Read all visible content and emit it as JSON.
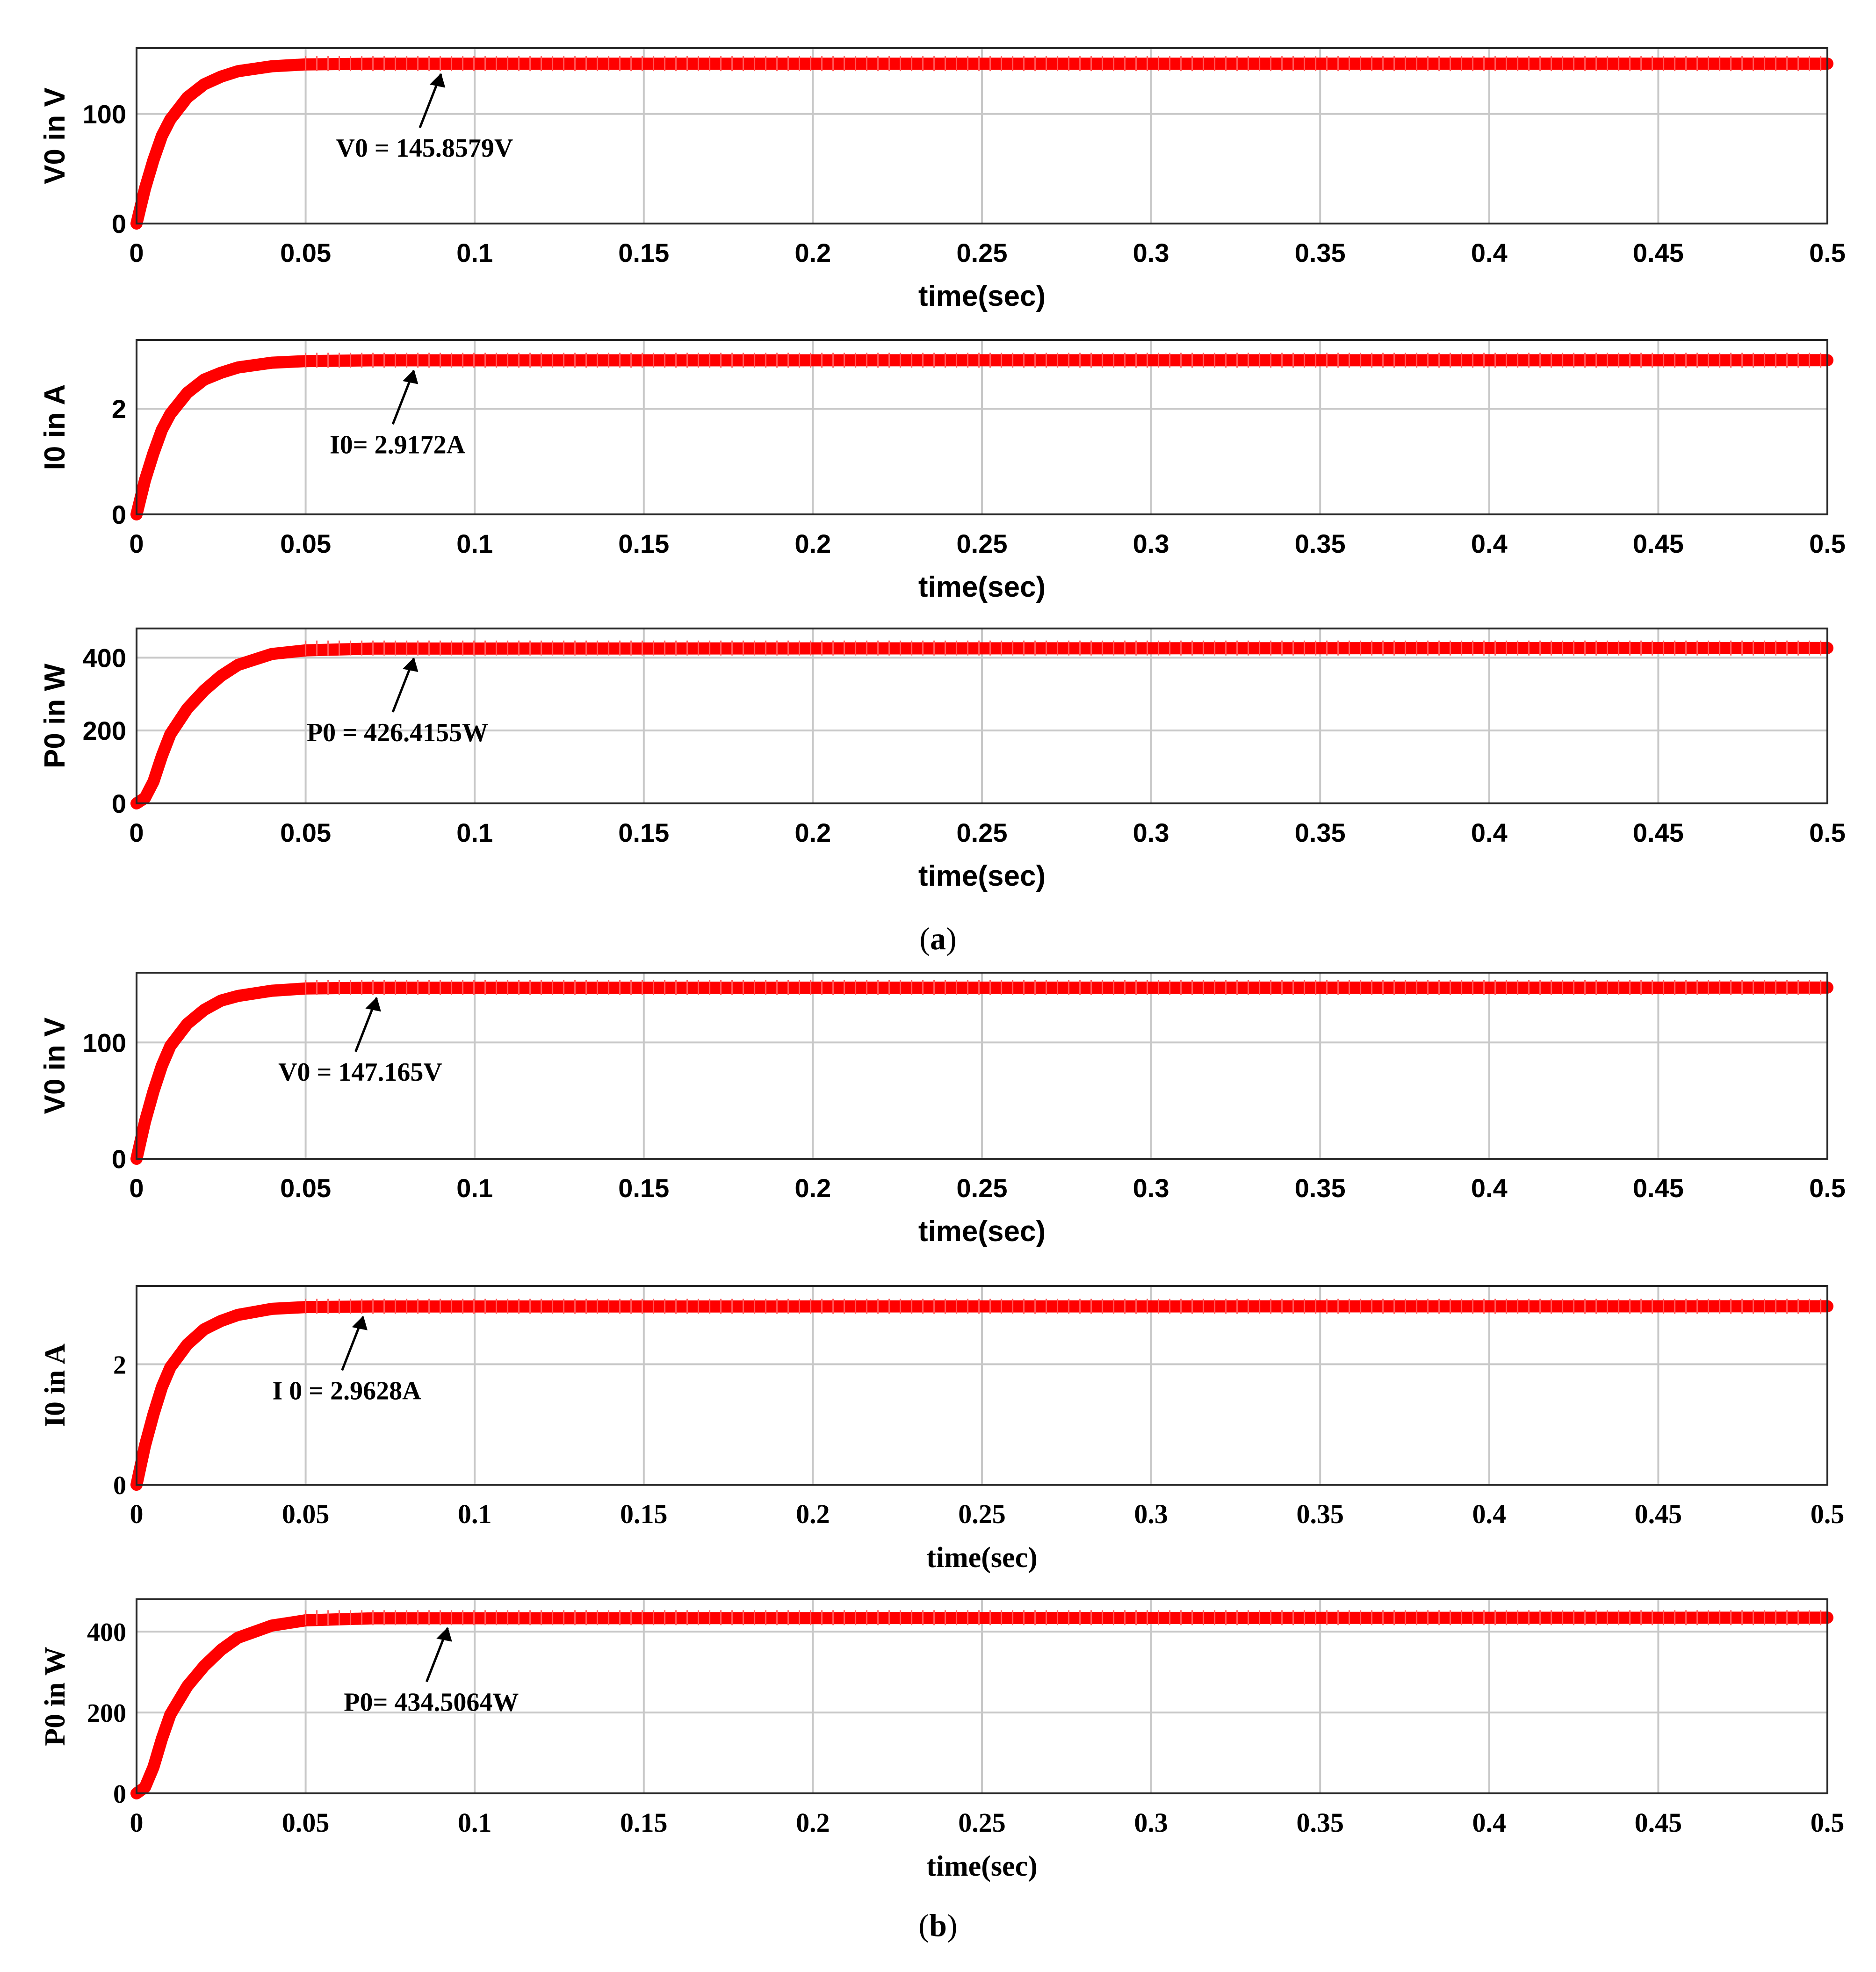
{
  "figure": {
    "captions": [
      {
        "open": "(",
        "letter": "a",
        "close": ")"
      },
      {
        "open": "(",
        "letter": "b",
        "close": ")"
      }
    ]
  },
  "chart_data": [
    {
      "type": "line",
      "panel": "a",
      "ylabel": "V0 in V",
      "xlabel": "time(sec)",
      "xlim": [
        0,
        0.5
      ],
      "ylim": [
        0,
        160
      ],
      "xticks": [
        "0",
        "0.05",
        "0.1",
        "0.15",
        "0.2",
        "0.25",
        "0.3",
        "0.35",
        "0.4",
        "0.45",
        "0.5"
      ],
      "yticks": [
        {
          "value": 0,
          "label": "0"
        },
        {
          "value": 100,
          "label": "100"
        }
      ],
      "grid": true,
      "color": "#ff0000",
      "style": "sans",
      "series": [
        {
          "steady_state": 145.8579,
          "time_constant": 0.01,
          "values": [
            [
              0,
              0
            ],
            [
              0.0025,
              32
            ],
            [
              0.005,
              58
            ],
            [
              0.0075,
              80
            ],
            [
              0.01,
              95
            ],
            [
              0.015,
              115
            ],
            [
              0.02,
              127
            ],
            [
              0.025,
              134
            ],
            [
              0.03,
              139
            ],
            [
              0.04,
              143.5
            ],
            [
              0.05,
              145.2
            ],
            [
              0.07,
              145.8
            ],
            [
              0.5,
              145.8579
            ]
          ]
        }
      ],
      "annotation": {
        "text": "V0 = 145.8579V",
        "x": 0.09
      }
    },
    {
      "type": "line",
      "panel": "a",
      "ylabel": "I0 in A",
      "xlabel": "time(sec)",
      "xlim": [
        0,
        0.5
      ],
      "ylim": [
        0,
        3.3
      ],
      "xticks": [
        "0",
        "0.05",
        "0.1",
        "0.15",
        "0.2",
        "0.25",
        "0.3",
        "0.35",
        "0.4",
        "0.45",
        "0.5"
      ],
      "yticks": [
        {
          "value": 0,
          "label": "0"
        },
        {
          "value": 2,
          "label": "2"
        }
      ],
      "grid": true,
      "color": "#ff0000",
      "style": "sans",
      "series": [
        {
          "steady_state": 2.9172,
          "time_constant": 0.01,
          "values": [
            [
              0,
              0
            ],
            [
              0.0025,
              0.65
            ],
            [
              0.005,
              1.16
            ],
            [
              0.0075,
              1.6
            ],
            [
              0.01,
              1.9
            ],
            [
              0.015,
              2.3
            ],
            [
              0.02,
              2.55
            ],
            [
              0.025,
              2.68
            ],
            [
              0.03,
              2.78
            ],
            [
              0.04,
              2.87
            ],
            [
              0.05,
              2.9
            ],
            [
              0.07,
              2.915
            ],
            [
              0.5,
              2.9172
            ]
          ]
        }
      ],
      "annotation": {
        "text": "I0= 2.9172A",
        "x": 0.082
      }
    },
    {
      "type": "line",
      "panel": "a",
      "ylabel": "P0 in W",
      "xlabel": "time(sec)",
      "xlim": [
        0,
        0.5
      ],
      "ylim": [
        0,
        480
      ],
      "xticks": [
        "0",
        "0.05",
        "0.1",
        "0.15",
        "0.2",
        "0.25",
        "0.3",
        "0.35",
        "0.4",
        "0.45",
        "0.5"
      ],
      "yticks": [
        {
          "value": 0,
          "label": "0"
        },
        {
          "value": 200,
          "label": "200"
        },
        {
          "value": 400,
          "label": "400"
        }
      ],
      "grid": true,
      "color": "#ff0000",
      "style": "sans",
      "series": [
        {
          "steady_state": 426.4155,
          "time_constant": 0.01,
          "values": [
            [
              0,
              0
            ],
            [
              0.0025,
              15
            ],
            [
              0.005,
              60
            ],
            [
              0.0075,
              130
            ],
            [
              0.01,
              190
            ],
            [
              0.015,
              260
            ],
            [
              0.02,
              310
            ],
            [
              0.025,
              350
            ],
            [
              0.03,
              380
            ],
            [
              0.04,
              410
            ],
            [
              0.05,
              420
            ],
            [
              0.07,
              425
            ],
            [
              0.5,
              426.4155
            ]
          ]
        }
      ],
      "annotation": {
        "text": "P0 = 426.4155W",
        "x": 0.082
      }
    },
    {
      "type": "line",
      "panel": "b",
      "ylabel": "V0 in V",
      "xlabel": "time(sec)",
      "xlim": [
        0,
        0.5
      ],
      "ylim": [
        0,
        160
      ],
      "xticks": [
        "0",
        "0.05",
        "0.1",
        "0.15",
        "0.2",
        "0.25",
        "0.3",
        "0.35",
        "0.4",
        "0.45",
        "0.5"
      ],
      "yticks": [
        {
          "value": 0,
          "label": "0"
        },
        {
          "value": 100,
          "label": "100"
        }
      ],
      "grid": true,
      "color": "#ff0000",
      "style": "sans",
      "series": [
        {
          "steady_state": 147.165,
          "time_constant": 0.01,
          "values": [
            [
              0,
              0
            ],
            [
              0.0025,
              32
            ],
            [
              0.005,
              58
            ],
            [
              0.0075,
              80
            ],
            [
              0.01,
              97
            ],
            [
              0.015,
              116
            ],
            [
              0.02,
              128
            ],
            [
              0.025,
              136
            ],
            [
              0.03,
              140
            ],
            [
              0.04,
              144.5
            ],
            [
              0.05,
              146.4
            ],
            [
              0.07,
              147
            ],
            [
              0.5,
              147.165
            ]
          ]
        }
      ],
      "annotation": {
        "text": "V0 = 147.165V",
        "x": 0.071
      }
    },
    {
      "type": "line",
      "panel": "b",
      "ylabel": "I0 in A",
      "xlabel": "time(sec)",
      "xlim": [
        0,
        0.5
      ],
      "ylim": [
        0,
        3.3
      ],
      "xticks": [
        "0",
        "0.05",
        "0.1",
        "0.15",
        "0.2",
        "0.25",
        "0.3",
        "0.35",
        "0.4",
        "0.45",
        "0.5"
      ],
      "yticks": [
        {
          "value": 0,
          "label": "0"
        },
        {
          "value": 2,
          "label": "2"
        }
      ],
      "grid": true,
      "color": "#ff0000",
      "style": "serif",
      "series": [
        {
          "steady_state": 2.9628,
          "time_constant": 0.01,
          "values": [
            [
              0,
              0
            ],
            [
              0.0025,
              0.65
            ],
            [
              0.005,
              1.17
            ],
            [
              0.0075,
              1.62
            ],
            [
              0.01,
              1.95
            ],
            [
              0.015,
              2.33
            ],
            [
              0.02,
              2.58
            ],
            [
              0.025,
              2.72
            ],
            [
              0.03,
              2.82
            ],
            [
              0.04,
              2.92
            ],
            [
              0.05,
              2.95
            ],
            [
              0.07,
              2.96
            ],
            [
              0.5,
              2.9628
            ]
          ]
        }
      ],
      "annotation": {
        "text": "I 0 = 2.9628A",
        "x": 0.067
      }
    },
    {
      "type": "line",
      "panel": "b",
      "ylabel": "P0 in W",
      "xlabel": "time(sec)",
      "xlim": [
        0,
        0.5
      ],
      "ylim": [
        0,
        480
      ],
      "xticks": [
        "0",
        "0.05",
        "0.1",
        "0.15",
        "0.2",
        "0.25",
        "0.3",
        "0.35",
        "0.4",
        "0.45",
        "0.5"
      ],
      "yticks": [
        {
          "value": 0,
          "label": "0"
        },
        {
          "value": 200,
          "label": "200"
        },
        {
          "value": 400,
          "label": "400"
        }
      ],
      "grid": true,
      "color": "#ff0000",
      "style": "serif",
      "series": [
        {
          "steady_state": 434.5064,
          "time_constant": 0.01,
          "values": [
            [
              0,
              0
            ],
            [
              0.0025,
              15
            ],
            [
              0.005,
              65
            ],
            [
              0.0075,
              135
            ],
            [
              0.01,
              195
            ],
            [
              0.015,
              265
            ],
            [
              0.02,
              315
            ],
            [
              0.025,
              355
            ],
            [
              0.03,
              385
            ],
            [
              0.04,
              415
            ],
            [
              0.05,
              428
            ],
            [
              0.07,
              433
            ],
            [
              0.5,
              434.5064
            ]
          ]
        }
      ],
      "annotation": {
        "text": "P0= 434.5064W",
        "x": 0.092
      }
    }
  ]
}
